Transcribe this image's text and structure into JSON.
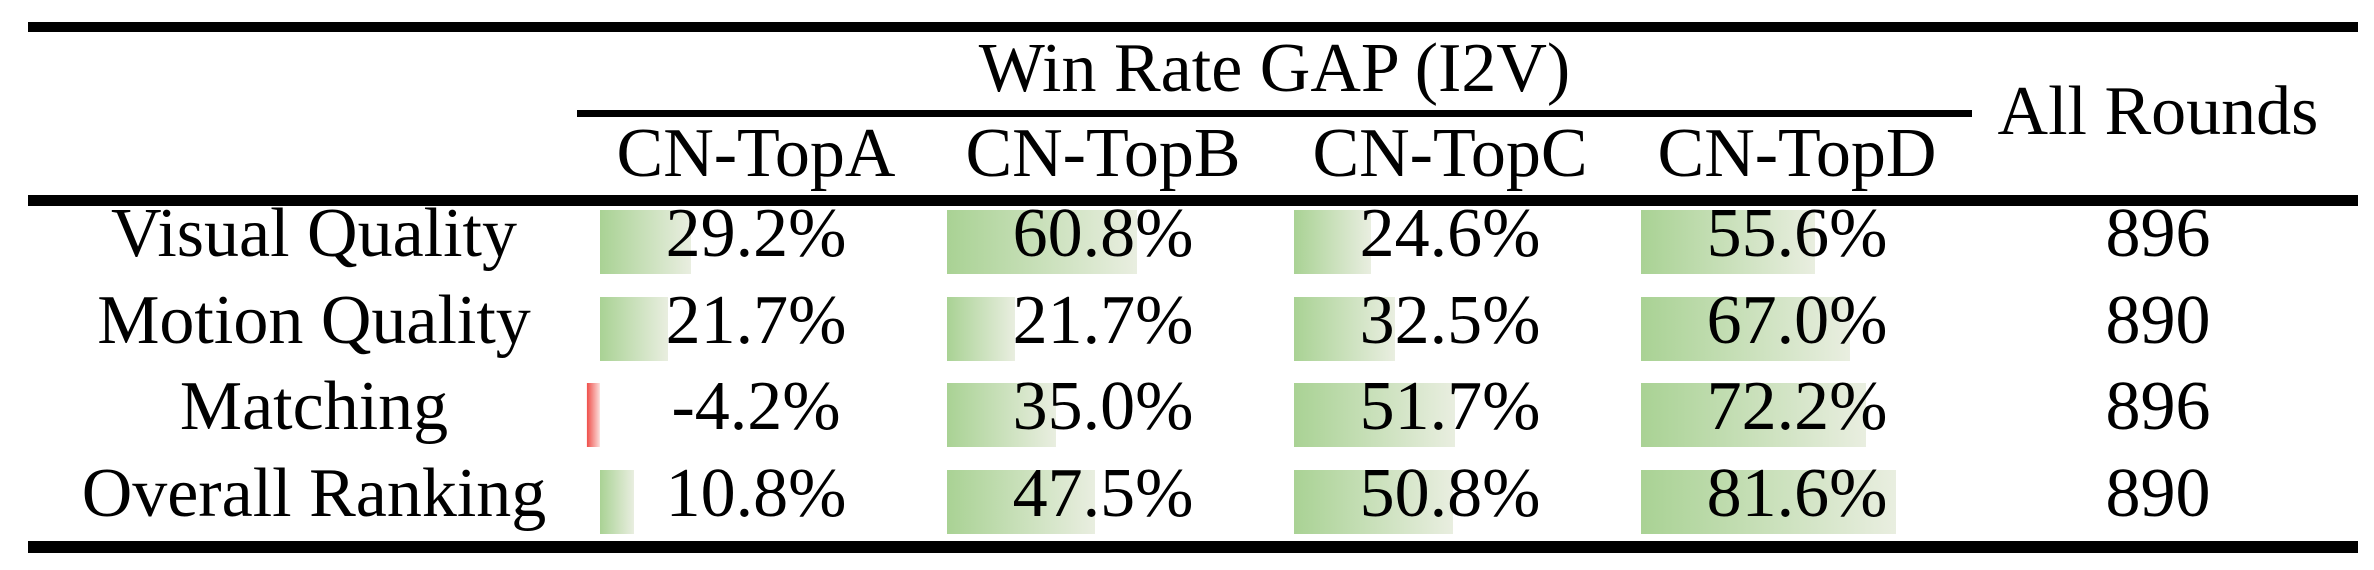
{
  "table": {
    "title": "Win Rate GAP (I2V)",
    "all_rounds_label": "All Rounds",
    "columns": [
      "CN-TopA",
      "CN-TopB",
      "CN-TopC",
      "CN-TopD"
    ],
    "rows": [
      {
        "label": "Visual Quality",
        "cells": [
          {
            "text": "29.2%",
            "pct": 29.2
          },
          {
            "text": "60.8%",
            "pct": 60.8
          },
          {
            "text": "24.6%",
            "pct": 24.6
          },
          {
            "text": "55.6%",
            "pct": 55.6
          }
        ],
        "rounds": "896"
      },
      {
        "label": "Motion Quality",
        "cells": [
          {
            "text": "21.7%",
            "pct": 21.7
          },
          {
            "text": "21.7%",
            "pct": 21.7
          },
          {
            "text": "32.5%",
            "pct": 32.5
          },
          {
            "text": "67.0%",
            "pct": 67.0
          }
        ],
        "rounds": "890"
      },
      {
        "label": "Matching",
        "cells": [
          {
            "text": "-4.2%",
            "pct": -4.2
          },
          {
            "text": "35.0%",
            "pct": 35.0
          },
          {
            "text": "51.7%",
            "pct": 51.7
          },
          {
            "text": "72.2%",
            "pct": 72.2
          }
        ],
        "rounds": "896"
      },
      {
        "label": "Overall Ranking",
        "cells": [
          {
            "text": "10.8%",
            "pct": 10.8
          },
          {
            "text": "47.5%",
            "pct": 47.5
          },
          {
            "text": "50.8%",
            "pct": 50.8
          },
          {
            "text": "81.6%",
            "pct": 81.6
          }
        ],
        "rounds": "890"
      }
    ],
    "colors": {
      "positive_bar_start": "#a9d294",
      "positive_bar_end": "#e9eee0",
      "negative_bar_start": "#ef4f4a",
      "negative_bar_end": "#fbdedb",
      "text": "#000000",
      "rule": "#000000"
    }
  },
  "chart_data": {
    "type": "table",
    "title": "Win Rate GAP (I2V)",
    "columns": [
      "CN-TopA",
      "CN-TopB",
      "CN-TopC",
      "CN-TopD",
      "All Rounds"
    ],
    "row_labels": [
      "Visual Quality",
      "Motion Quality",
      "Matching",
      "Overall Ranking"
    ],
    "series": [
      {
        "name": "Visual Quality",
        "win_rate_gap_pct": [
          29.2,
          60.8,
          24.6,
          55.6
        ],
        "all_rounds": 896
      },
      {
        "name": "Motion Quality",
        "win_rate_gap_pct": [
          21.7,
          21.7,
          32.5,
          67.0
        ],
        "all_rounds": 890
      },
      {
        "name": "Matching",
        "win_rate_gap_pct": [
          -4.2,
          35.0,
          51.7,
          72.2
        ],
        "all_rounds": 896
      },
      {
        "name": "Overall Ranking",
        "win_rate_gap_pct": [
          10.8,
          47.5,
          50.8,
          81.6
        ],
        "all_rounds": 890
      }
    ],
    "layout": "in-cell data bars behind values; green gradient for positive values, red for negative; bar length proportional to percent"
  }
}
